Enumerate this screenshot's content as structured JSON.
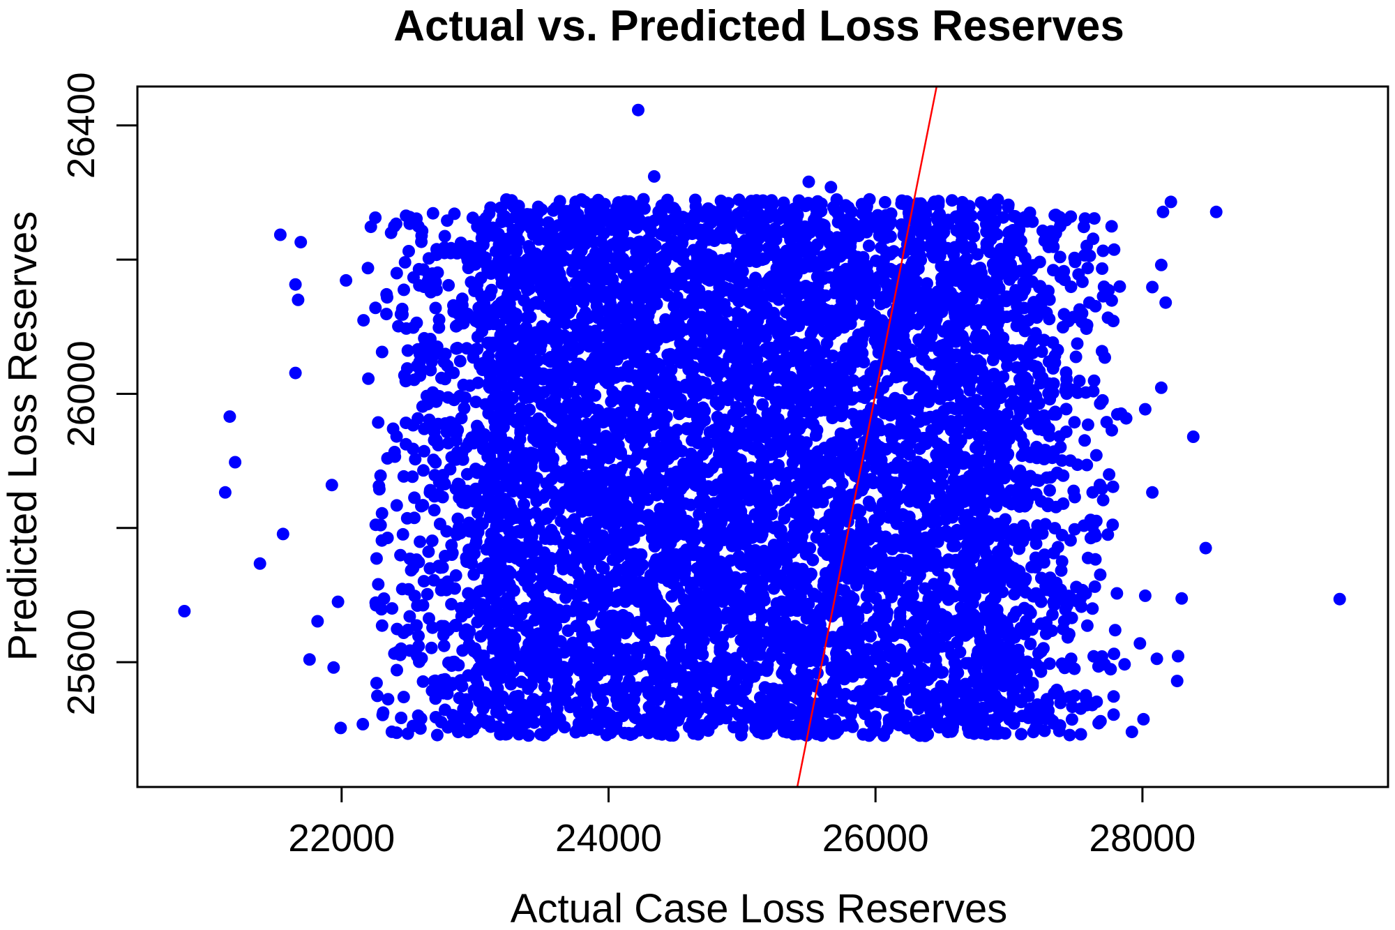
{
  "chart_data": {
    "type": "scatter",
    "title": "Actual vs. Predicted Loss Reserves",
    "xlabel": "Actual Case Loss Reserves",
    "ylabel": "Predicted Loss Reserves",
    "xlim": [
      20470,
      29840
    ],
    "ylim": [
      25414,
      26458
    ],
    "xticks": [
      22000,
      24000,
      26000,
      28000
    ],
    "xtick_labels": [
      "22000",
      "24000",
      "26000",
      "28000"
    ],
    "yticks": [
      25600,
      25800,
      26000,
      26200,
      26400
    ],
    "ytick_labels": [
      "25600",
      "",
      "26000",
      "",
      "26400"
    ],
    "grid": false,
    "colors": {
      "points": "#0000ff",
      "reference_line": "#ff0000"
    },
    "reference_line": {
      "slope": 1,
      "intercept": 0
    },
    "dense_cloud": {
      "core_x": [
        23100,
        27000
      ],
      "core_y": [
        25490,
        26290
      ],
      "core_count": 6000,
      "left_fringe_x": [
        22150,
        23100
      ],
      "right_fringe_x": [
        27000,
        27900
      ],
      "fringe_y": [
        25490,
        26270
      ],
      "fringe_count": 500
    },
    "outliers": [
      [
        20822,
        25676
      ],
      [
        21162,
        25966
      ],
      [
        21202,
        25898
      ],
      [
        21128,
        25853
      ],
      [
        21388,
        25747
      ],
      [
        21561,
        25791
      ],
      [
        21541,
        26237
      ],
      [
        21694,
        26226
      ],
      [
        21654,
        26163
      ],
      [
        21674,
        26140
      ],
      [
        21654,
        26031
      ],
      [
        21760,
        25604
      ],
      [
        21820,
        25661
      ],
      [
        21940,
        25592
      ],
      [
        21993,
        25502
      ],
      [
        21927,
        25864
      ],
      [
        21973,
        25690
      ],
      [
        22033,
        26169
      ],
      [
        24222,
        26423
      ],
      [
        24342,
        26324
      ],
      [
        25500,
        26316
      ],
      [
        25666,
        26308
      ],
      [
        28553,
        26271
      ],
      [
        28213,
        26286
      ],
      [
        29478,
        25694
      ],
      [
        28381,
        25936
      ],
      [
        28474,
        25770
      ],
      [
        28294,
        25695
      ],
      [
        28267,
        25609
      ],
      [
        28260,
        25572
      ],
      [
        28154,
        26271
      ],
      [
        28141,
        26192
      ],
      [
        28074,
        26159
      ],
      [
        28174,
        26136
      ],
      [
        28141,
        26009
      ],
      [
        28021,
        25977
      ],
      [
        28074,
        25853
      ],
      [
        28021,
        25699
      ],
      [
        27981,
        25628
      ],
      [
        28008,
        25515
      ],
      [
        27921,
        25496
      ],
      [
        28108,
        25605
      ]
    ]
  }
}
